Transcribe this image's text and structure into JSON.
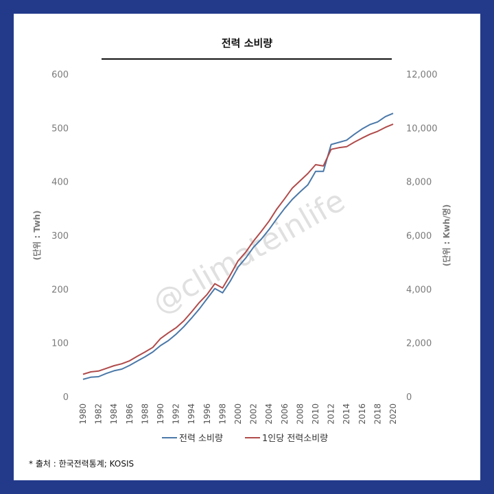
{
  "chart_data": {
    "type": "line",
    "title": "전력 소비량",
    "source": "* 출처 : 한국전력통계; KOSIS",
    "watermark": "@climateinlife",
    "left_axis": {
      "label": "(단위 : Twh)",
      "ylim": [
        0,
        600
      ],
      "ticks": [
        "0",
        "100",
        "200",
        "300",
        "400",
        "500",
        "600"
      ]
    },
    "right_axis": {
      "label": "(단위 : Kwh/명)",
      "ylim": [
        0,
        12000
      ],
      "ticks": [
        "0",
        "2,000",
        "4,000",
        "6,000",
        "8,000",
        "10,000",
        "12,000"
      ]
    },
    "x_tick_labels": [
      "1980",
      "1982",
      "1984",
      "1986",
      "1988",
      "1990",
      "1992",
      "1994",
      "1996",
      "1998",
      "2000",
      "2002",
      "2004",
      "2006",
      "2008",
      "2010",
      "2012",
      "2014",
      "2016",
      "2018",
      "2020"
    ],
    "x": [
      1980,
      1981,
      1982,
      1983,
      1984,
      1985,
      1986,
      1987,
      1988,
      1989,
      1990,
      1991,
      1992,
      1993,
      1994,
      1995,
      1996,
      1997,
      1998,
      1999,
      2000,
      2001,
      2002,
      2003,
      2004,
      2005,
      2006,
      2007,
      2008,
      2009,
      2010,
      2011,
      2012,
      2013,
      2014,
      2015,
      2016,
      2017,
      2018,
      2019,
      2020
    ],
    "series": [
      {
        "name": "전력 소비량",
        "axis": "left",
        "color": "#4a78a8",
        "values": [
          32,
          36,
          37,
          43,
          48,
          51,
          58,
          66,
          74,
          83,
          95,
          104,
          116,
          130,
          146,
          163,
          182,
          201,
          193,
          215,
          241,
          258,
          278,
          293,
          311,
          331,
          350,
          367,
          381,
          394,
          419,
          419,
          469,
          473,
          477,
          488,
          498,
          506,
          511,
          521,
          527
        ]
      },
      {
        "name": "1인당 전력소비량",
        "axis": "right",
        "color": "#b04a4a",
        "values": [
          830,
          920,
          950,
          1050,
          1150,
          1220,
          1330,
          1500,
          1660,
          1830,
          2160,
          2370,
          2560,
          2820,
          3150,
          3500,
          3800,
          4200,
          4040,
          4530,
          5050,
          5380,
          5790,
          6150,
          6530,
          6980,
          7360,
          7760,
          8030,
          8300,
          8630,
          8580,
          9200,
          9260,
          9300,
          9470,
          9620,
          9760,
          9870,
          10020,
          10140
        ]
      }
    ],
    "legend_position": "bottom",
    "grid": false
  }
}
